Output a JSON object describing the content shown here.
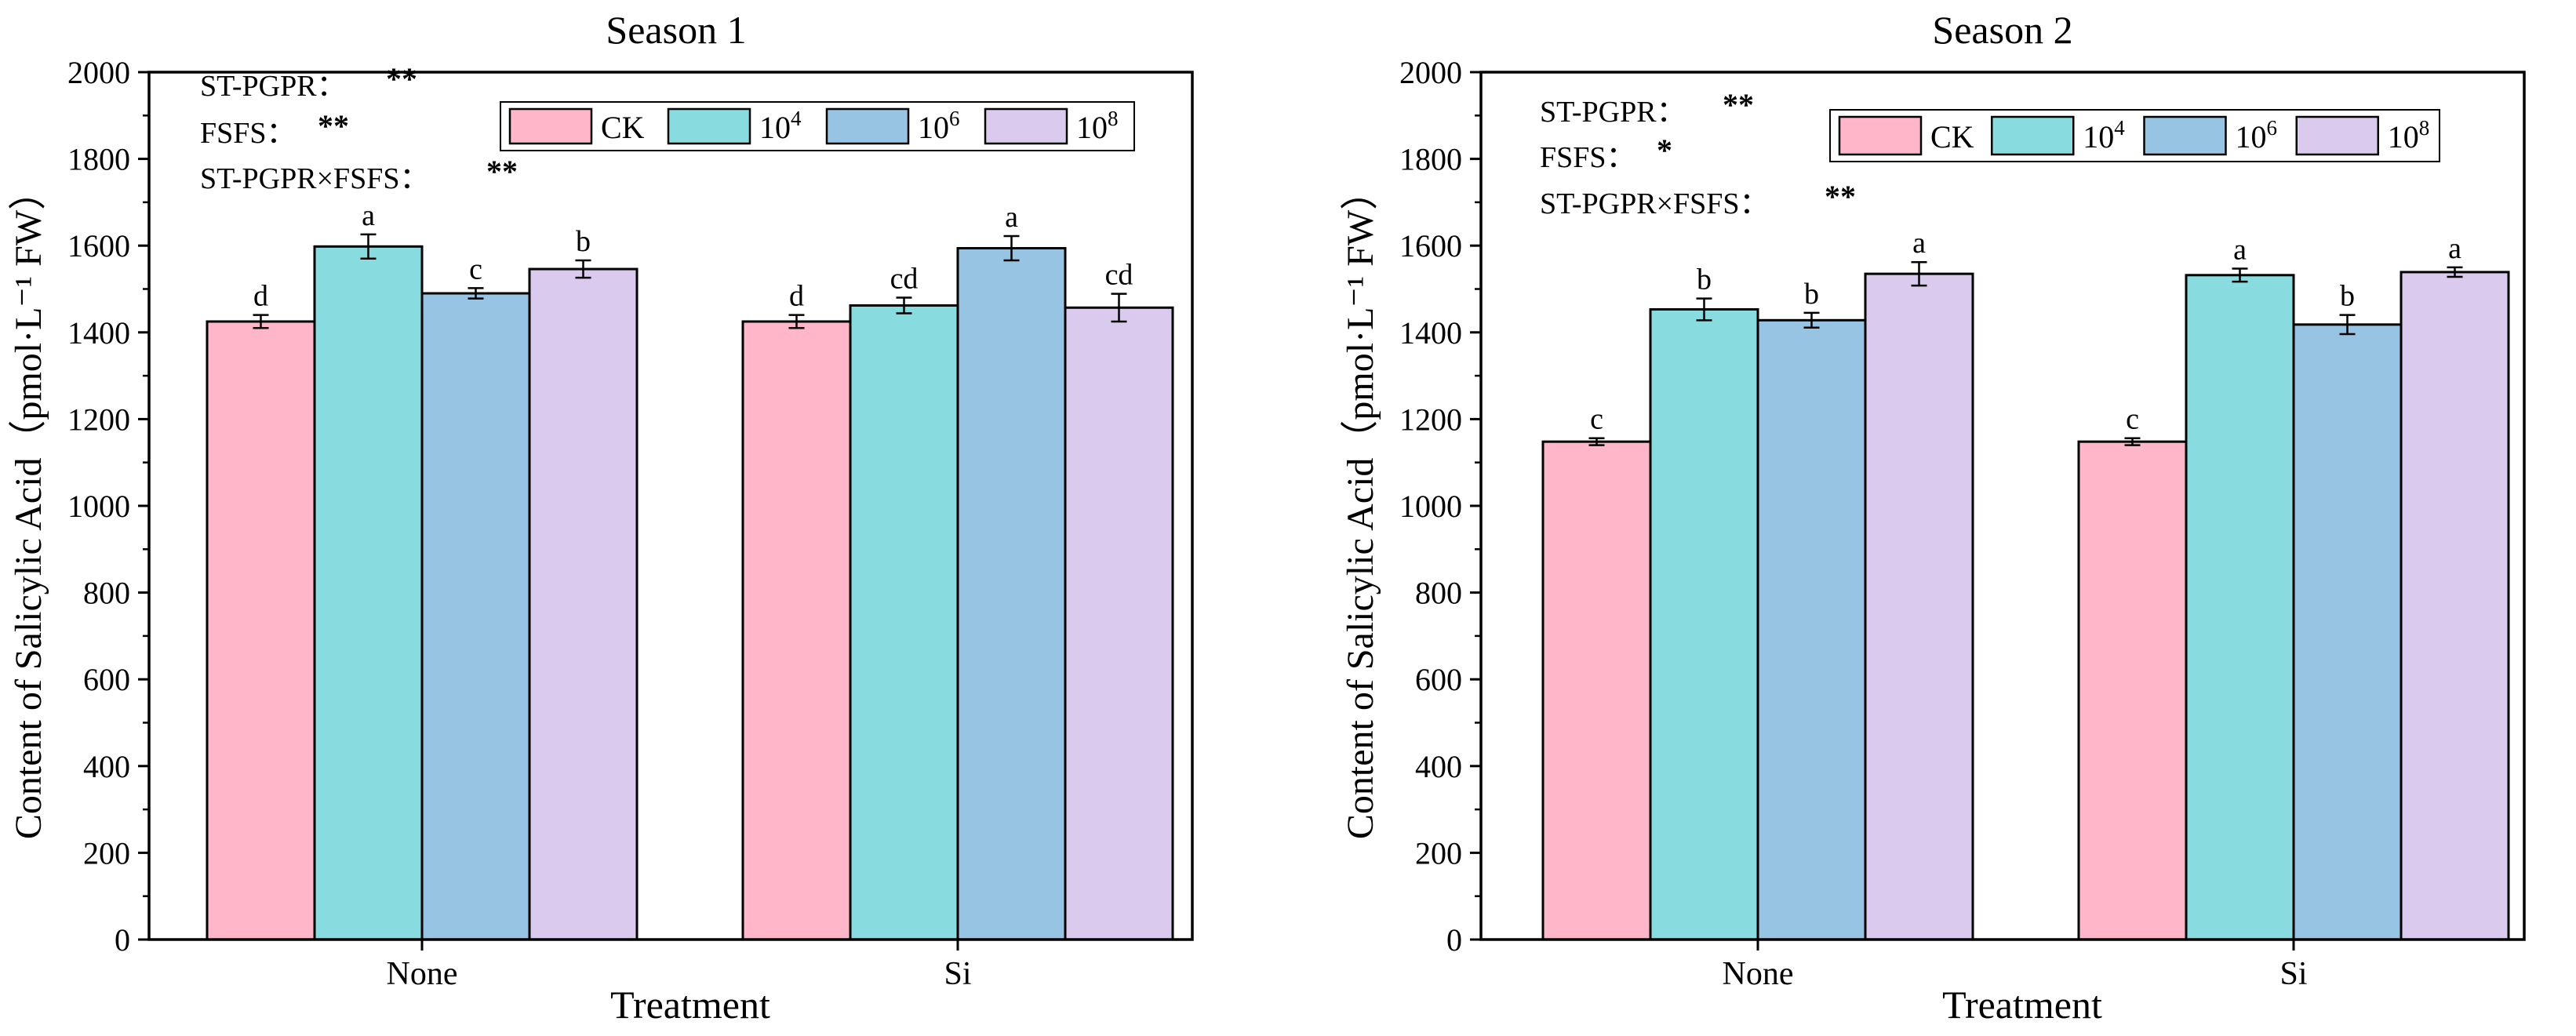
{
  "chart_data": [
    {
      "type": "bar",
      "title": "Season 1",
      "xlabel": "Treatment",
      "ylabel": "Content of Salicylic Acid（pmol·L⁻¹ FW）",
      "ylim": [
        0,
        2000
      ],
      "yticks": [
        "0",
        "200",
        "400",
        "600",
        "800",
        "1000",
        "1200",
        "1400",
        "1600",
        "1800",
        "2000"
      ],
      "categories": [
        "None",
        "Si"
      ],
      "series": [
        {
          "name": "CK",
          "color": "#FFB6C8",
          "values": [
            1425,
            1425
          ],
          "errors": [
            15,
            15
          ],
          "letters": [
            "d",
            "d"
          ]
        },
        {
          "name": "10^4",
          "color": "#88DCE0",
          "values": [
            1598,
            1462
          ],
          "errors": [
            28,
            18
          ],
          "letters": [
            "a",
            "cd"
          ]
        },
        {
          "name": "10^6",
          "color": "#98C4E4",
          "values": [
            1490,
            1594
          ],
          "errors": [
            12,
            28
          ],
          "letters": [
            "c",
            "a"
          ]
        },
        {
          "name": "10^8",
          "color": "#DACBEE",
          "values": [
            1546,
            1457
          ],
          "errors": [
            20,
            32
          ],
          "letters": [
            "b",
            "cd"
          ]
        }
      ],
      "significance": [
        {
          "label": "ST-PGPR：",
          "stars": "**"
        },
        {
          "label": "FSFS：",
          "stars": "**"
        },
        {
          "label": "ST-PGPR×FSFS：",
          "stars": "**"
        }
      ],
      "legend_position": "top-right"
    },
    {
      "type": "bar",
      "title": "Season 2",
      "xlabel": "Treatment",
      "ylabel": "Content of Salicylic Acid（pmol·L⁻¹ FW）",
      "ylim": [
        0,
        2000
      ],
      "yticks": [
        "0",
        "200",
        "400",
        "600",
        "800",
        "1000",
        "1200",
        "1400",
        "1600",
        "1800",
        "2000"
      ],
      "categories": [
        "None",
        "Si"
      ],
      "series": [
        {
          "name": "CK",
          "color": "#FFB6C8",
          "values": [
            1148,
            1148
          ],
          "errors": [
            8,
            8
          ],
          "letters": [
            "c",
            "c"
          ]
        },
        {
          "name": "10^4",
          "color": "#88DCE0",
          "values": [
            1453,
            1532
          ],
          "errors": [
            25,
            15
          ],
          "letters": [
            "b",
            "a"
          ]
        },
        {
          "name": "10^6",
          "color": "#98C4E4",
          "values": [
            1428,
            1418
          ],
          "errors": [
            17,
            22
          ],
          "letters": [
            "b",
            "b"
          ]
        },
        {
          "name": "10^8",
          "color": "#DACBEE",
          "values": [
            1535,
            1539
          ],
          "errors": [
            27,
            11
          ],
          "letters": [
            "a",
            "a"
          ]
        }
      ],
      "significance": [
        {
          "label": "ST-PGPR：",
          "stars": "**"
        },
        {
          "label": "FSFS：",
          "stars": "*"
        },
        {
          "label": "ST-PGPR×FSFS：",
          "stars": "**"
        }
      ],
      "legend_position": "top-right"
    }
  ]
}
